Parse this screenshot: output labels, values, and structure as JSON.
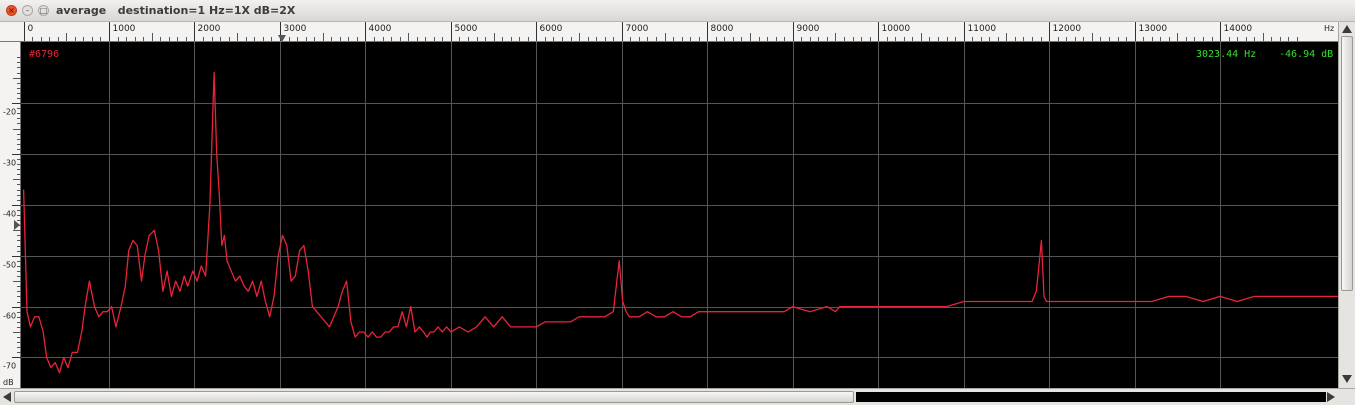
{
  "window": {
    "title": "average   destination=1 Hz=1X dB=2X"
  },
  "overlay": {
    "trace_label": "#6796",
    "cursor_freq": "3023.44 Hz",
    "cursor_db": "-46.94 dB"
  },
  "colors": {
    "trace": "#e8243a",
    "readout": "#35e02a",
    "grid": "#555555",
    "background": "#000000"
  },
  "icons": [
    "close-icon",
    "minimize-icon",
    "maximize-icon",
    "cursor-marker-icon",
    "scroll-up-arrow-icon",
    "scroll-down-arrow-icon",
    "scroll-left-arrow-icon",
    "scroll-right-arrow-icon"
  ],
  "chart_data": {
    "type": "line",
    "xunit": "Hz",
    "yunit": "dB",
    "xlim": [
      -30,
      15380
    ],
    "ylim": [
      -76,
      -8
    ],
    "grid": true,
    "x_ticks": [
      0,
      1000,
      2000,
      3000,
      4000,
      5000,
      6000,
      7000,
      8000,
      9000,
      10000,
      11000,
      12000,
      13000,
      14000
    ],
    "x_tick_labels": [
      "0",
      "1000",
      "2000",
      "3000",
      "4000",
      "5000",
      "6000",
      "7000",
      "8000",
      "9000",
      "10000",
      "11000",
      "12000",
      "13000",
      "14000"
    ],
    "y_ticks": [
      -20,
      -30,
      -40,
      -50,
      -60,
      -70
    ],
    "y_tick_labels": [
      "-20",
      "-30",
      "-40",
      "-50",
      "-60",
      "-70"
    ],
    "cursor_x": 3023.44,
    "series": [
      {
        "x": [
          0,
          40,
          80,
          130,
          180,
          230,
          270,
          320,
          370,
          420,
          470,
          520,
          570,
          630,
          680,
          720,
          770,
          830,
          880,
          930,
          980,
          1030,
          1080,
          1140,
          1190,
          1230,
          1280,
          1330,
          1380,
          1420,
          1470,
          1530,
          1580,
          1630,
          1680,
          1730,
          1780,
          1830,
          1880,
          1920,
          1980,
          2030,
          2080,
          2130,
          2180,
          2230,
          2260,
          2290,
          2320,
          2350,
          2380,
          2430,
          2480,
          2530,
          2580,
          2630,
          2680,
          2730,
          2780,
          2830,
          2880,
          2930,
          2980,
          3030,
          3080,
          3130,
          3180,
          3230,
          3280,
          3330,
          3380,
          3430,
          3480,
          3530,
          3580,
          3630,
          3680,
          3730,
          3780,
          3830,
          3880,
          3930,
          3980,
          4030,
          4080,
          4130,
          4180,
          4230,
          4280,
          4330,
          4380,
          4430,
          4480,
          4530,
          4580,
          4630,
          4680,
          4720,
          4760,
          4800,
          4850,
          4900,
          4950,
          5000,
          5100,
          5200,
          5300,
          5400,
          5500,
          5600,
          5700,
          5800,
          5900,
          6000,
          6100,
          6200,
          6300,
          6400,
          6500,
          6600,
          6700,
          6800,
          6900,
          6970,
          7010,
          7050,
          7090,
          7130,
          7200,
          7300,
          7400,
          7500,
          7600,
          7700,
          7800,
          7900,
          8000,
          8100,
          8200,
          8300,
          8400,
          8500,
          8600,
          8700,
          8800,
          8900,
          9000,
          9200,
          9400,
          9500,
          9550,
          9600,
          9800,
          10000,
          10200,
          10400,
          10600,
          10800,
          11000,
          11200,
          11400,
          11600,
          11800,
          11850,
          11880,
          11910,
          11940,
          11970,
          12000,
          12200,
          12400,
          12600,
          12800,
          13000,
          13200,
          13400,
          13600,
          13800,
          14000,
          14200,
          14400,
          14600,
          14800,
          15000,
          15200,
          15380
        ],
        "y": [
          -37,
          -61,
          -64,
          -62,
          -62,
          -65,
          -70,
          -72,
          -71,
          -73,
          -70,
          -72,
          -69,
          -69,
          -65,
          -60,
          -55,
          -60,
          -62,
          -61,
          -61,
          -60,
          -64,
          -60,
          -56,
          -49,
          -47,
          -48,
          -55,
          -50,
          -46,
          -45,
          -49,
          -57,
          -53,
          -58,
          -55,
          -57,
          -54,
          -56,
          -53,
          -55,
          -52,
          -54,
          -40,
          -14,
          -30,
          -38,
          -48,
          -46,
          -51,
          -53,
          -55,
          -54,
          -56,
          -57,
          -55,
          -58,
          -55,
          -59,
          -62,
          -58,
          -50,
          -46,
          -48,
          -55,
          -54,
          -49,
          -48,
          -53,
          -60,
          -61,
          -62,
          -63,
          -64,
          -62,
          -60,
          -57,
          -55,
          -63,
          -66,
          -65,
          -65,
          -66,
          -65,
          -66,
          -66,
          -65,
          -65,
          -64,
          -64,
          -61,
          -64,
          -60,
          -65,
          -64,
          -65,
          -66,
          -65,
          -65,
          -64,
          -65,
          -64,
          -65,
          -64,
          -65,
          -64,
          -62,
          -64,
          -62,
          -64,
          -64,
          -64,
          -64,
          -63,
          -63,
          -63,
          -63,
          -62,
          -62,
          -62,
          -62,
          -61,
          -51,
          -59,
          -61,
          -62,
          -62,
          -62,
          -61,
          -62,
          -62,
          -61,
          -62,
          -62,
          -61,
          -61,
          -61,
          -61,
          -61,
          -61,
          -61,
          -61,
          -61,
          -61,
          -61,
          -60,
          -61,
          -60,
          -61,
          -60,
          -60,
          -60,
          -60,
          -60,
          -60,
          -60,
          -60,
          -59,
          -59,
          -59,
          -59,
          -59,
          -57,
          -52,
          -47,
          -58,
          -59,
          -59,
          -59,
          -59,
          -59,
          -59,
          -59,
          -59,
          -58,
          -58,
          -59,
          -58,
          -59,
          -58,
          -58,
          -58,
          -58,
          -58,
          -58
        ]
      }
    ]
  }
}
